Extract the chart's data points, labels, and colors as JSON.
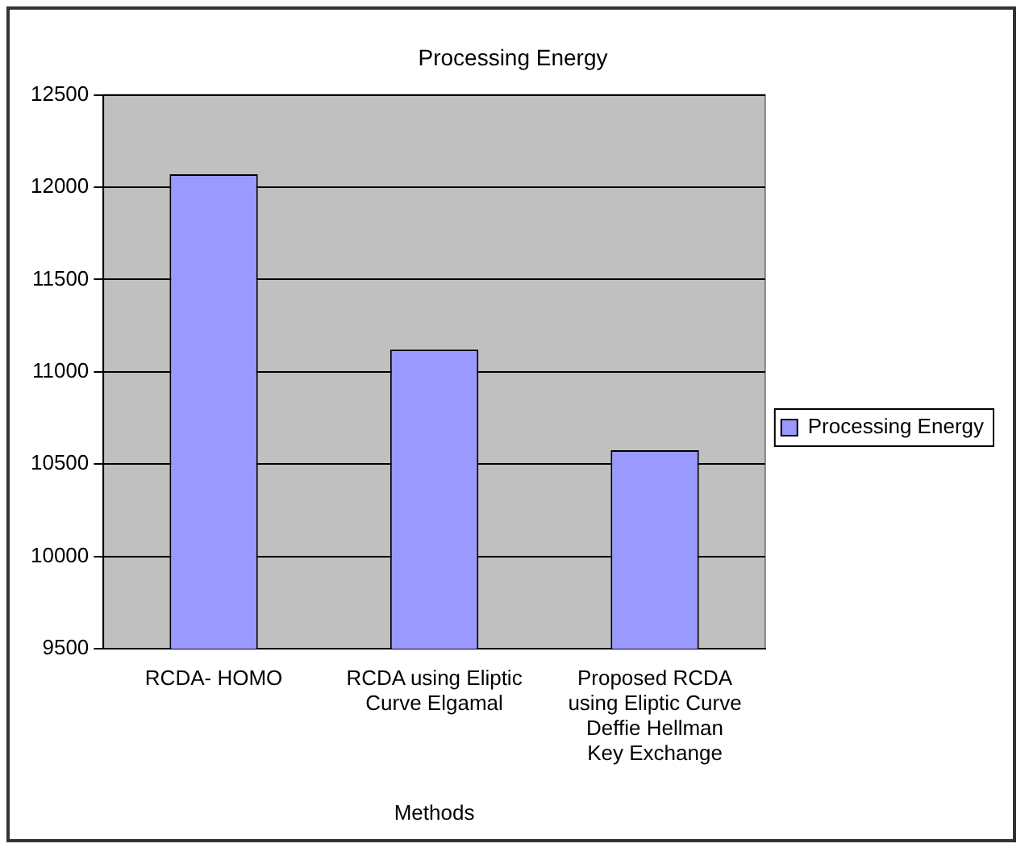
{
  "chart_data": {
    "type": "bar",
    "title": "Processing Energy",
    "xlabel": "Methods",
    "categories": [
      "RCDA- HOMO",
      "RCDA using Eliptic Curve Elgamal",
      "Proposed RCDA using Eliptic Curve Deffie Hellman Key Exchange"
    ],
    "series": [
      {
        "name": "Processing Energy",
        "color": "#9999ff",
        "values": [
          12070,
          11120,
          10575
        ]
      }
    ],
    "ylim": [
      9500,
      12500
    ],
    "yticks": [
      9500,
      10000,
      10500,
      11000,
      11500,
      12000,
      12500
    ],
    "grid": "y",
    "legend": "right"
  }
}
